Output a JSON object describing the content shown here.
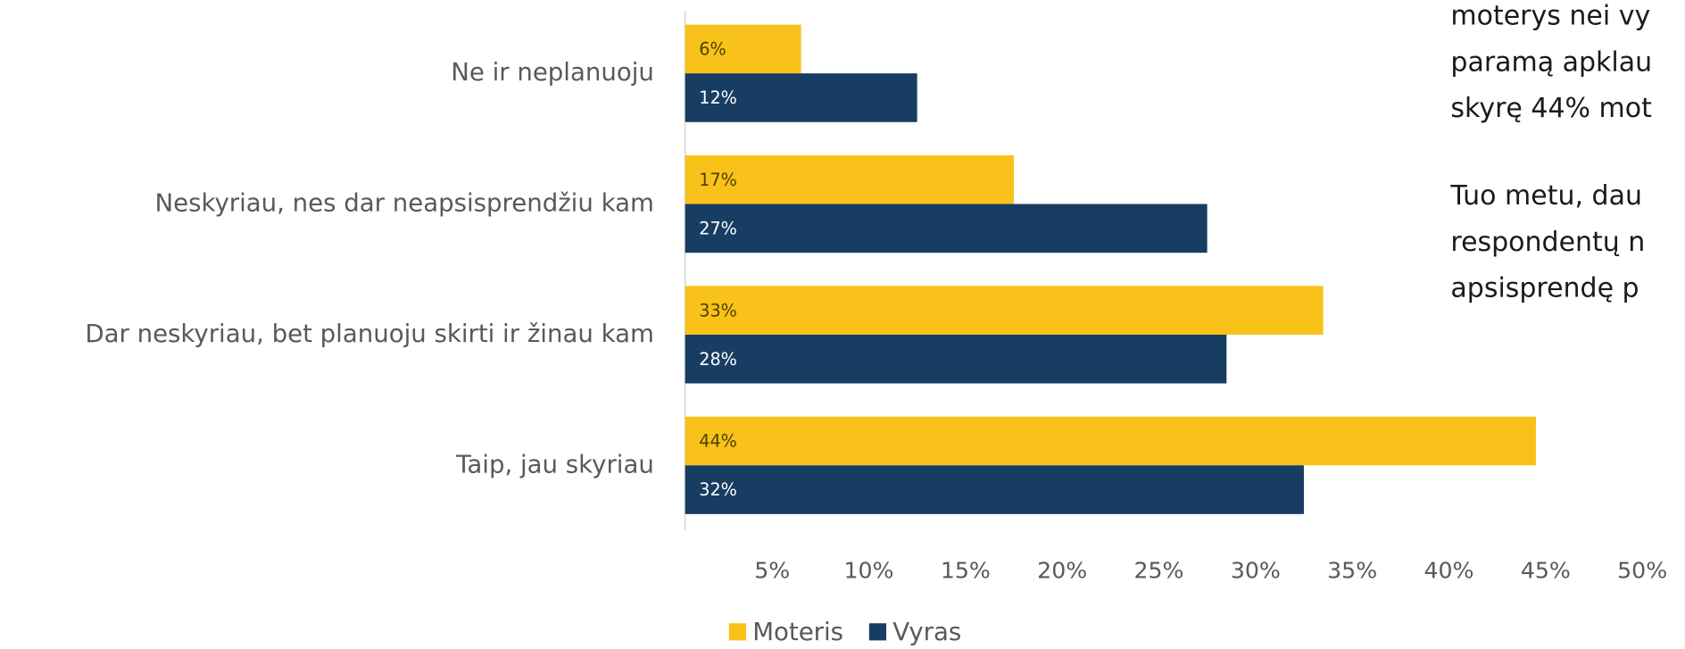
{
  "chart_data": {
    "type": "hbar",
    "categories": [
      "Ne ir neplanuoju",
      "Neskyriau, nes dar neapsisprendžiu kam",
      "Dar neskyriau, bet planuoju skirti ir žinau kam",
      "Taip, jau skyriau"
    ],
    "series": [
      {
        "name": "Moteris",
        "color": "#f9c21a",
        "values": [
          6,
          17,
          33,
          44
        ],
        "value_labels": [
          "6%",
          "17%",
          "33%",
          "44%"
        ]
      },
      {
        "name": "Vyras",
        "color": "#173d63",
        "values": [
          12,
          27,
          28,
          32
        ],
        "value_labels": [
          "12%",
          "27%",
          "28%",
          "32%"
        ]
      }
    ],
    "xlim": [
      0,
      50
    ],
    "xticks": [
      {
        "value": 5,
        "label": "5%"
      },
      {
        "value": 10,
        "label": "10%"
      },
      {
        "value": 15,
        "label": "15%"
      },
      {
        "value": 20,
        "label": "20%"
      },
      {
        "value": 25,
        "label": "25%"
      },
      {
        "value": 30,
        "label": "30%"
      },
      {
        "value": 35,
        "label": "35%"
      },
      {
        "value": 40,
        "label": "40%"
      },
      {
        "value": 45,
        "label": "45%"
      },
      {
        "value": 50,
        "label": "50%"
      }
    ],
    "legend": "bottom",
    "annotations": [
      "moterys nei vy",
      "paramą apklau",
      "skyrę 44% mot",
      "Tuo metu, dau",
      "respondentų n",
      "apsisprendę p"
    ]
  }
}
